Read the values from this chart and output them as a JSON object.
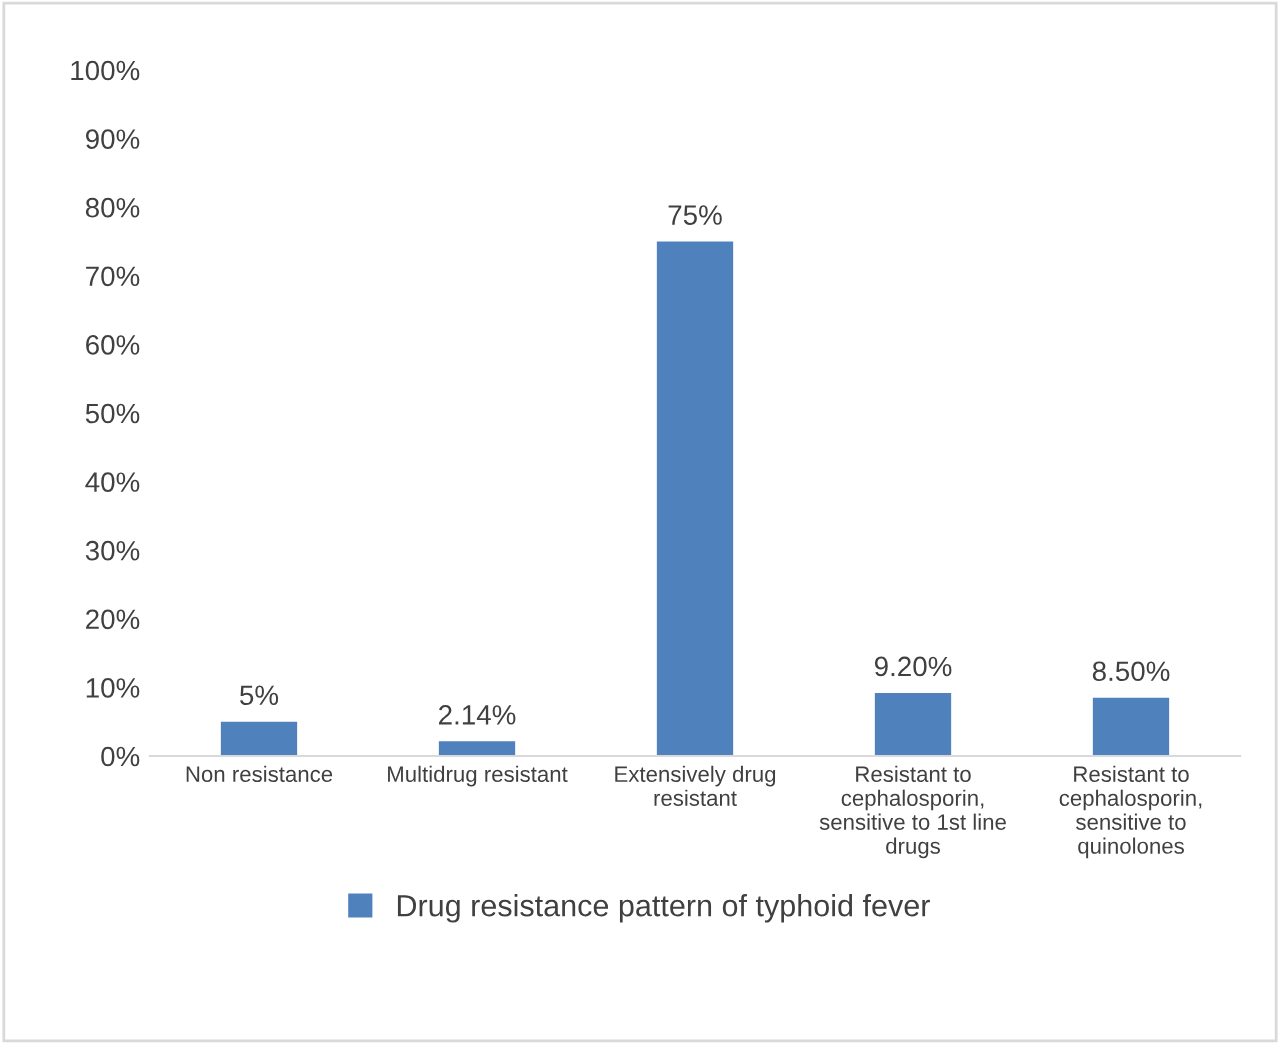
{
  "chart_data": {
    "type": "bar",
    "categories": [
      "Non resistance",
      "Multidrug resistant",
      "Extensively drug resistant",
      "Resistant to cephalosporin, sensitive to 1st line drugs",
      "Resistant to cephalosporin, sensitive to quinolones"
    ],
    "series": [
      {
        "name": "Drug resistance pattern of typhoid fever",
        "color": "#4f81bd",
        "values": [
          5,
          2.14,
          75,
          9.2,
          8.5
        ],
        "value_labels": [
          "5%",
          "2.14%",
          "75%",
          "9.20%",
          "8.50%"
        ]
      }
    ],
    "ylim": [
      0,
      100
    ],
    "yticks": [
      {
        "value": 0,
        "label": "0%"
      },
      {
        "value": 10,
        "label": "10%"
      },
      {
        "value": 20,
        "label": "20%"
      },
      {
        "value": 30,
        "label": "30%"
      },
      {
        "value": 40,
        "label": "40%"
      },
      {
        "value": 50,
        "label": "50%"
      },
      {
        "value": 60,
        "label": "60%"
      },
      {
        "value": 70,
        "label": "70%"
      },
      {
        "value": 80,
        "label": "80%"
      },
      {
        "value": 90,
        "label": "90%"
      },
      {
        "value": 100,
        "label": "100%"
      }
    ],
    "legend": "bottom"
  }
}
